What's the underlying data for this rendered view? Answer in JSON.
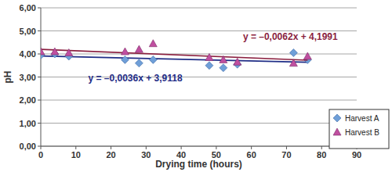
{
  "chart_data": {
    "type": "scatter",
    "x_label": "Drying time (hours)",
    "y_label": "pH",
    "xlim": [
      0,
      90
    ],
    "xticks": [
      0,
      10,
      20,
      30,
      40,
      50,
      60,
      70,
      80,
      90
    ],
    "ylim": [
      0,
      6
    ],
    "yticks": [
      {
        "value": 0,
        "label": "0,00"
      },
      {
        "value": 1,
        "label": "1,00"
      },
      {
        "value": 2,
        "label": "2,00"
      },
      {
        "value": 3,
        "label": "3,00"
      },
      {
        "value": 4,
        "label": "4,00"
      },
      {
        "value": 5,
        "label": "5,00"
      },
      {
        "value": 6,
        "label": "6,00"
      }
    ],
    "grid": true,
    "legend": "right",
    "series": [
      {
        "name": "Harvest A",
        "color": "#6f9fd8",
        "marker": "diamond",
        "x": [
          0,
          4,
          8,
          24,
          28,
          32,
          48,
          52,
          56,
          72,
          76
        ],
        "values": [
          3.95,
          4.0,
          3.9,
          3.75,
          3.6,
          3.75,
          3.5,
          3.4,
          3.55,
          4.05,
          3.75
        ],
        "trend": {
          "label": "y = –0,0036x + 3,9118",
          "color": "#1f2d86",
          "x": [
            0,
            76
          ],
          "values": [
            3.9118,
            3.6382
          ]
        }
      },
      {
        "name": "Harvest B",
        "color": "#c04fa0",
        "marker": "triangle",
        "x": [
          0,
          4,
          8,
          24,
          28,
          32,
          48,
          52,
          56,
          72,
          76
        ],
        "values": [
          4.1,
          4.1,
          4.05,
          4.1,
          4.2,
          4.45,
          3.85,
          3.75,
          3.65,
          3.6,
          3.9
        ],
        "trend": {
          "label": "y = –0,0062x + 4,1991",
          "color": "#8b1f3f",
          "x": [
            0,
            76
          ],
          "values": [
            4.1991,
            3.7279
          ]
        }
      }
    ]
  }
}
